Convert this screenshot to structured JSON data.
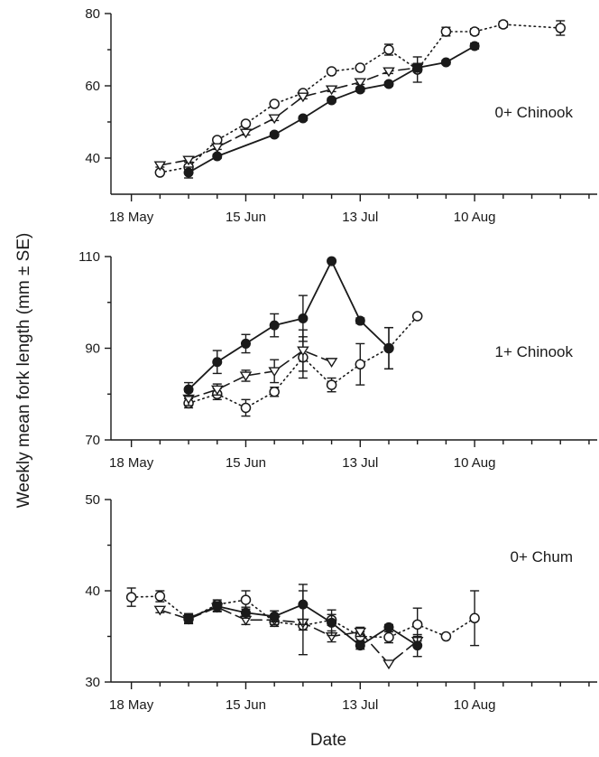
{
  "figure": {
    "xlabel": "Date",
    "ylabel": "Weekly mean fork length (mm ± SE)"
  },
  "chart_data": [
    {
      "type": "line",
      "label": "0+ Chinook",
      "xlabel": "Date",
      "ylabel": "Weekly mean fork length (mm ± SE)",
      "xlim": [
        "2000-05-13",
        "2000-09-09"
      ],
      "ylim": [
        30,
        80
      ],
      "xticks": [
        {
          "date": "2000-05-18",
          "label": "18 May"
        },
        {
          "date": "2000-06-15",
          "label": "15 Jun"
        },
        {
          "date": "2000-07-13",
          "label": "13 Jul"
        },
        {
          "date": "2000-08-10",
          "label": "10 Aug"
        }
      ],
      "yticks": [
        40,
        60,
        80
      ],
      "grid": false,
      "series": [
        {
          "marker": "filled-circle",
          "line": "solid",
          "points": [
            {
              "x": "2000-06-01",
              "y": 36,
              "err": 1.5
            },
            {
              "x": "2000-06-08",
              "y": 40.5,
              "err": 0.6
            },
            {
              "x": "2000-06-22",
              "y": 46.5,
              "err": 0.6
            },
            {
              "x": "2000-06-29",
              "y": 51,
              "err": 0.6
            },
            {
              "x": "2000-07-06",
              "y": 56,
              "err": 0.6
            },
            {
              "x": "2000-07-13",
              "y": 59,
              "err": 0.6
            },
            {
              "x": "2000-07-20",
              "y": 60.5,
              "err": 0.6
            },
            {
              "x": "2000-07-27",
              "y": 65,
              "err": 0.6
            },
            {
              "x": "2000-08-03",
              "y": 66.5,
              "err": 0.6
            },
            {
              "x": "2000-08-10",
              "y": 71,
              "err": 0.8
            }
          ]
        },
        {
          "marker": "open-triangle-down",
          "line": "dashed",
          "points": [
            {
              "x": "2000-05-25",
              "y": 38,
              "err": 0.5
            },
            {
              "x": "2000-06-01",
              "y": 39.5,
              "err": 0.6
            },
            {
              "x": "2000-06-08",
              "y": 43,
              "err": 0.6
            },
            {
              "x": "2000-06-15",
              "y": 47,
              "err": 0.6
            },
            {
              "x": "2000-06-22",
              "y": 51,
              "err": 0.6
            },
            {
              "x": "2000-06-29",
              "y": 57,
              "err": 0.6
            },
            {
              "x": "2000-07-06",
              "y": 59,
              "err": 0.6
            },
            {
              "x": "2000-07-13",
              "y": 61,
              "err": 0.6
            },
            {
              "x": "2000-07-20",
              "y": 64,
              "err": 0.6
            },
            {
              "x": "2000-07-27",
              "y": 65,
              "err": 1.2
            }
          ]
        },
        {
          "marker": "open-circle",
          "line": "dotted",
          "points": [
            {
              "x": "2000-05-25",
              "y": 36,
              "err": 0.5
            },
            {
              "x": "2000-06-01",
              "y": 37.5,
              "err": 0.6
            },
            {
              "x": "2000-06-08",
              "y": 45,
              "err": 0.6
            },
            {
              "x": "2000-06-15",
              "y": 49.5,
              "err": 0.6
            },
            {
              "x": "2000-06-22",
              "y": 55,
              "err": 0.6
            },
            {
              "x": "2000-06-29",
              "y": 58,
              "err": 0.6
            },
            {
              "x": "2000-07-06",
              "y": 64,
              "err": 0.6
            },
            {
              "x": "2000-07-13",
              "y": 65,
              "err": 0.6
            },
            {
              "x": "2000-07-20",
              "y": 70,
              "err": 1.5
            },
            {
              "x": "2000-07-27",
              "y": 64.5,
              "err": 3.5
            },
            {
              "x": "2000-08-03",
              "y": 75,
              "err": 1.2
            },
            {
              "x": "2000-08-10",
              "y": 75,
              "err": 0.8
            },
            {
              "x": "2000-08-17",
              "y": 77,
              "err": 0.8
            },
            {
              "x": "2000-08-31",
              "y": 76,
              "err": 2
            }
          ]
        }
      ]
    },
    {
      "type": "line",
      "label": "1+ Chinook",
      "xlabel": "Date",
      "ylabel": "Weekly mean fork length (mm ± SE)",
      "xlim": [
        "2000-05-13",
        "2000-09-09"
      ],
      "ylim": [
        70,
        110
      ],
      "xticks": [
        {
          "date": "2000-05-18",
          "label": "18 May"
        },
        {
          "date": "2000-06-15",
          "label": "15 Jun"
        },
        {
          "date": "2000-07-13",
          "label": "13 Jul"
        },
        {
          "date": "2000-08-10",
          "label": "10 Aug"
        }
      ],
      "yticks": [
        70,
        90,
        110
      ],
      "grid": false,
      "series": [
        {
          "marker": "filled-circle",
          "line": "solid",
          "points": [
            {
              "x": "2000-06-01",
              "y": 81,
              "err": 1.5
            },
            {
              "x": "2000-06-08",
              "y": 87,
              "err": 2.5
            },
            {
              "x": "2000-06-15",
              "y": 91,
              "err": 2
            },
            {
              "x": "2000-06-22",
              "y": 95,
              "err": 2.5
            },
            {
              "x": "2000-06-29",
              "y": 96.5,
              "err": 5
            },
            {
              "x": "2000-07-06",
              "y": 109,
              "err": 0
            },
            {
              "x": "2000-07-13",
              "y": 96,
              "err": 0.6
            },
            {
              "x": "2000-07-20",
              "y": 90,
              "err": 4.5
            }
          ]
        },
        {
          "marker": "open-triangle-down",
          "line": "dashed",
          "points": [
            {
              "x": "2000-06-01",
              "y": 79,
              "err": 1.5
            },
            {
              "x": "2000-06-08",
              "y": 81,
              "err": 1.2
            },
            {
              "x": "2000-06-15",
              "y": 84,
              "err": 1.2
            },
            {
              "x": "2000-06-22",
              "y": 85,
              "err": 2.5
            },
            {
              "x": "2000-06-29",
              "y": 89.5,
              "err": 4.5
            },
            {
              "x": "2000-07-06",
              "y": 87,
              "err": 0
            }
          ]
        },
        {
          "marker": "open-circle",
          "line": "dotted",
          "points": [
            {
              "x": "2000-06-01",
              "y": 78,
              "err": 1
            },
            {
              "x": "2000-06-08",
              "y": 80,
              "err": 1.2
            },
            {
              "x": "2000-06-15",
              "y": 77,
              "err": 1.8
            },
            {
              "x": "2000-06-22",
              "y": 80.5,
              "err": 1
            },
            {
              "x": "2000-06-29",
              "y": 88,
              "err": 4.5
            },
            {
              "x": "2000-07-06",
              "y": 82,
              "err": 1.5
            },
            {
              "x": "2000-07-13",
              "y": 86.5,
              "err": 4.5
            },
            {
              "x": "2000-07-20",
              "y": 90,
              "err": 4.5
            },
            {
              "x": "2000-07-27",
              "y": 97,
              "err": 0
            }
          ]
        }
      ]
    },
    {
      "type": "line",
      "label": "0+ Chum",
      "xlabel": "Date",
      "ylabel": "Weekly mean fork length (mm ± SE)",
      "xlim": [
        "2000-05-13",
        "2000-09-09"
      ],
      "ylim": [
        30,
        50
      ],
      "xticks": [
        {
          "date": "2000-05-18",
          "label": "18 May"
        },
        {
          "date": "2000-06-15",
          "label": "15 Jun"
        },
        {
          "date": "2000-07-13",
          "label": "13 Jul"
        },
        {
          "date": "2000-08-10",
          "label": "10 Aug"
        }
      ],
      "yticks": [
        30,
        40,
        50
      ],
      "grid": false,
      "series": [
        {
          "marker": "filled-circle",
          "line": "solid",
          "points": [
            {
              "x": "2000-06-01",
              "y": 37,
              "err": 0.5
            },
            {
              "x": "2000-06-08",
              "y": 38.3,
              "err": 0.5
            },
            {
              "x": "2000-06-15",
              "y": 37.6,
              "err": 0.6
            },
            {
              "x": "2000-06-22",
              "y": 37.2,
              "err": 0.6
            },
            {
              "x": "2000-06-29",
              "y": 38.5,
              "err": 2.2
            },
            {
              "x": "2000-07-06",
              "y": 36.5,
              "err": 1.4
            },
            {
              "x": "2000-07-13",
              "y": 34,
              "err": 0.4
            },
            {
              "x": "2000-07-20",
              "y": 36,
              "err": 0.3
            },
            {
              "x": "2000-07-27",
              "y": 34,
              "err": 1.2
            }
          ]
        },
        {
          "marker": "open-triangle-down",
          "line": "dashed",
          "points": [
            {
              "x": "2000-05-25",
              "y": 37.9,
              "err": 0.3
            },
            {
              "x": "2000-06-01",
              "y": 36.9,
              "err": 0.5
            },
            {
              "x": "2000-06-08",
              "y": 38.2,
              "err": 0.5
            },
            {
              "x": "2000-06-15",
              "y": 36.8,
              "err": 0.5
            },
            {
              "x": "2000-06-22",
              "y": 36.8,
              "err": 0.5
            },
            {
              "x": "2000-06-29",
              "y": 36.5,
              "err": 3.5
            },
            {
              "x": "2000-07-06",
              "y": 35,
              "err": 0.6
            },
            {
              "x": "2000-07-13",
              "y": 35.5,
              "err": 0.5
            },
            {
              "x": "2000-07-20",
              "y": 32,
              "err": 0
            },
            {
              "x": "2000-07-27",
              "y": 34.5,
              "err": 0.5
            }
          ]
        },
        {
          "marker": "open-circle",
          "line": "dotted",
          "points": [
            {
              "x": "2000-05-18",
              "y": 39.3,
              "err": 1
            },
            {
              "x": "2000-05-25",
              "y": 39.4,
              "err": 0.6
            },
            {
              "x": "2000-06-01",
              "y": 36.9,
              "err": 0.5
            },
            {
              "x": "2000-06-08",
              "y": 38.5,
              "err": 0.5
            },
            {
              "x": "2000-06-15",
              "y": 39,
              "err": 1
            },
            {
              "x": "2000-06-22",
              "y": 36.6,
              "err": 0.5
            },
            {
              "x": "2000-06-29",
              "y": 36.2,
              "err": 0.5
            },
            {
              "x": "2000-07-06",
              "y": 36.8,
              "err": 0.6
            },
            {
              "x": "2000-07-13",
              "y": 35,
              "err": 0.5
            },
            {
              "x": "2000-07-20",
              "y": 34.9,
              "err": 0.6
            },
            {
              "x": "2000-07-27",
              "y": 36.3,
              "err": 1.8
            },
            {
              "x": "2000-08-03",
              "y": 35,
              "err": 0
            },
            {
              "x": "2000-08-10",
              "y": 37,
              "err": 3
            }
          ]
        }
      ]
    }
  ]
}
